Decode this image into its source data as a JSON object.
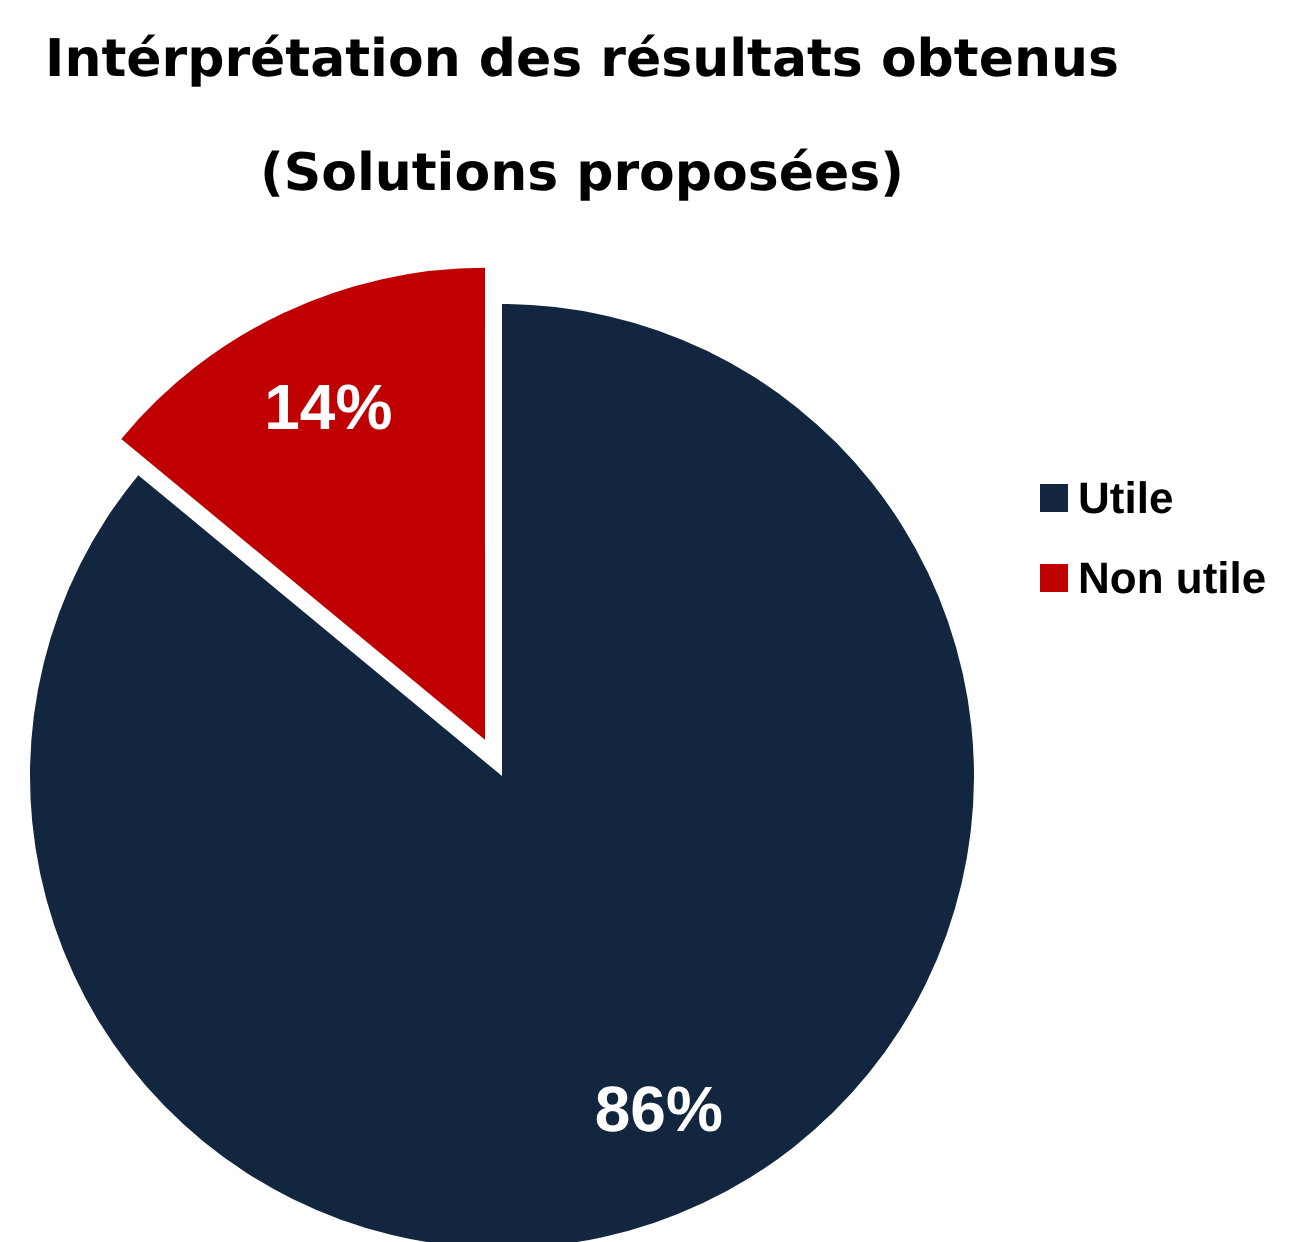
{
  "chart_data": {
    "type": "pie",
    "title": "Intérprétation des résultats obtenus",
    "subtitle": "(Solutions proposées)",
    "categories": [
      "Utile",
      "Non utile"
    ],
    "values": [
      86,
      14
    ],
    "colors": [
      "#12263f",
      "#c00000"
    ],
    "value_labels": [
      "86%",
      "14%"
    ],
    "legend": "right"
  }
}
